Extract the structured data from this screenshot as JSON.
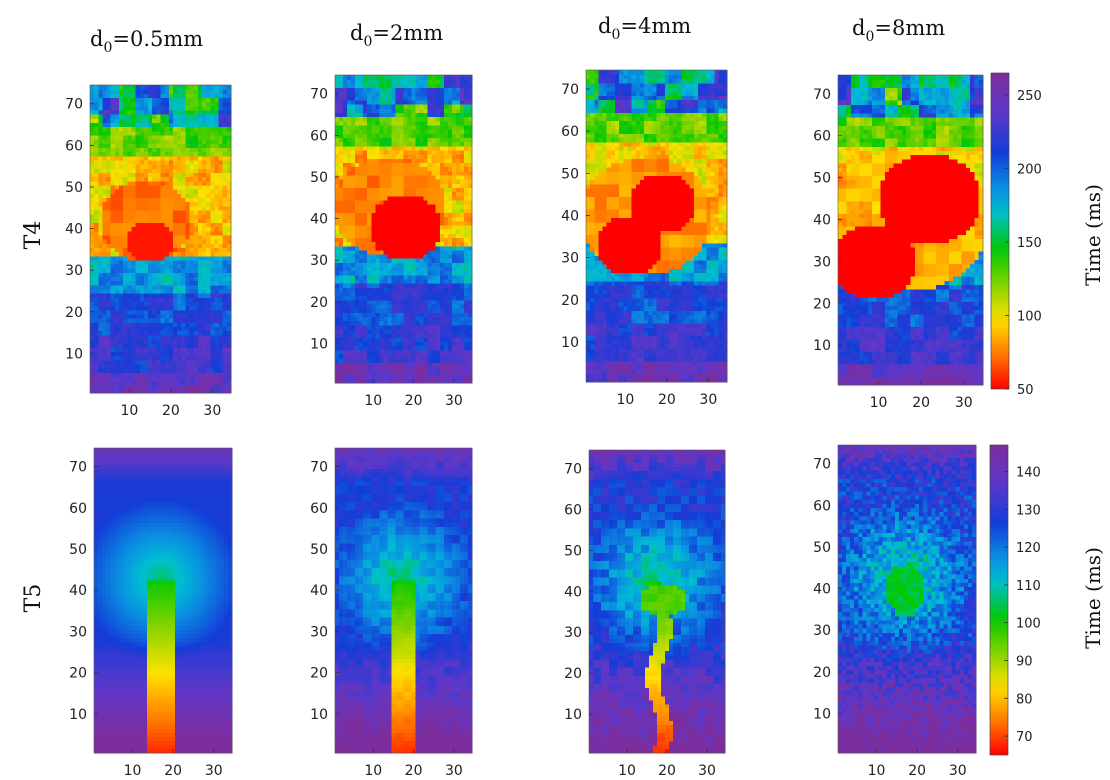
{
  "chart_data": {
    "type": "heatmap",
    "columns": [
      {
        "title_base": "d",
        "title_sub": "0",
        "title_rest": "=0.5mm"
      },
      {
        "title_base": "d",
        "title_sub": "0",
        "title_rest": "=2mm"
      },
      {
        "title_base": "d",
        "title_sub": "0",
        "title_rest": "=4mm"
      },
      {
        "title_base": "d",
        "title_sub": "0",
        "title_rest": "=8mm"
      }
    ],
    "rows": [
      {
        "label": "T4",
        "colorbar_label": "Time (ms)",
        "clim": [
          50,
          265
        ],
        "colorbar_ticks": [
          50,
          100,
          150,
          200,
          250
        ],
        "colormap": "jet-reversed",
        "colors": {
          "low": "#ff0000",
          "mid": "#00c800",
          "high": "#7d2d9b"
        }
      },
      {
        "label": "T5",
        "colorbar_label": "Time (ms)",
        "clim": [
          65,
          147
        ],
        "colorbar_ticks": [
          70,
          80,
          90,
          100,
          110,
          120,
          130,
          140
        ],
        "colormap": "jet-reversed",
        "colors": {
          "low": "#ff0000",
          "mid": "#00c800",
          "high": "#7d2d9b"
        }
      }
    ],
    "x": {
      "ticks": [
        10,
        20,
        30
      ],
      "range": [
        1,
        34
      ]
    },
    "y": {
      "ticks": [
        10,
        20,
        30,
        40,
        50,
        60,
        70
      ],
      "range": [
        1,
        74
      ]
    },
    "grid": false,
    "legend": "colorbar-right"
  }
}
